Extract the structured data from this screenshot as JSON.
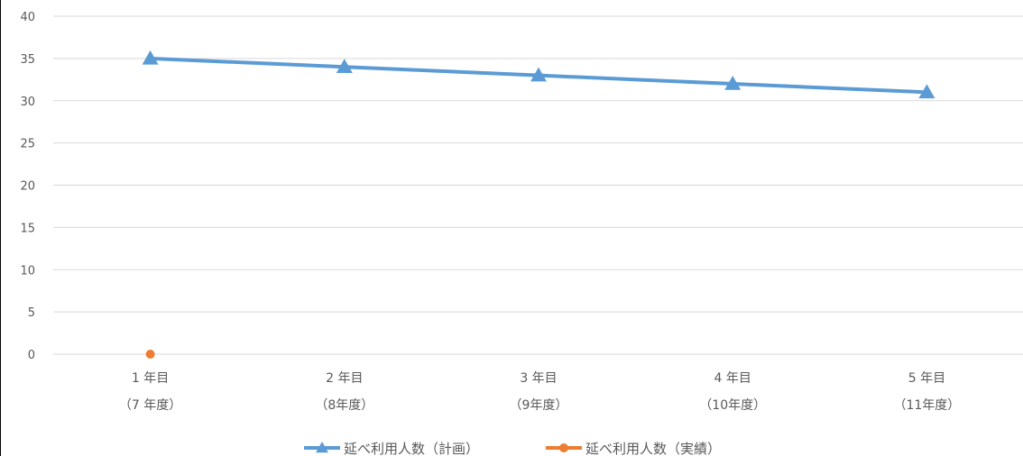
{
  "chart_data": {
    "type": "line",
    "categories": [
      "1 年目\n（7 年度）",
      "2 年目\n（8年度）",
      "3 年目\n（9年度）",
      "4 年目\n（10年度）",
      "5 年目\n（11年度）"
    ],
    "category_lines": [
      [
        "1 年目",
        "（7 年度）"
      ],
      [
        "2 年目",
        "（8年度）"
      ],
      [
        "3 年目",
        "（9年度）"
      ],
      [
        "4 年目",
        "（10年度）"
      ],
      [
        "5 年目",
        "（11年度）"
      ]
    ],
    "series": [
      {
        "name": "延べ利用人数（計画）",
        "values": [
          35,
          34,
          33,
          32,
          31
        ],
        "color": "#5b9bd5",
        "marker": "triangle"
      },
      {
        "name": "延べ利用人数（実績）",
        "values": [
          0,
          null,
          null,
          null,
          null
        ],
        "color": "#ed7d31",
        "marker": "circle"
      }
    ],
    "ylim": [
      0,
      40
    ],
    "yticks": [
      "0",
      "5",
      "10",
      "15",
      "20",
      "25",
      "30",
      "35",
      "40"
    ],
    "grid": true,
    "legend": "bottom",
    "title": "",
    "xlabel": "",
    "ylabel": ""
  }
}
